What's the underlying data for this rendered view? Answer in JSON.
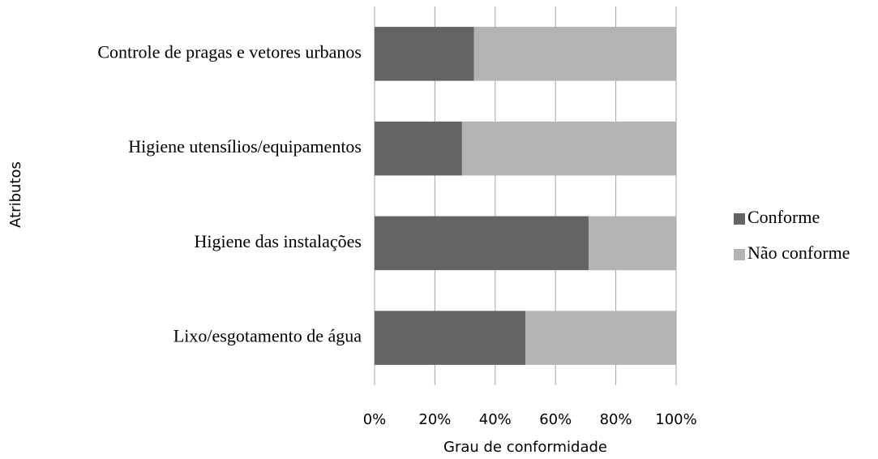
{
  "chart_data": {
    "type": "stacked_barh",
    "xlabel": "Grau de conformidade",
    "ylabel": "Atributos",
    "categories": [
      "Controle de pragas e vetores urbanos",
      "Higiene utensílios/equipamentos",
      "Higiene das instalações",
      "Lixo/esgotamento de água"
    ],
    "series": [
      {
        "name": "Conforme",
        "color": "#646464",
        "values": [
          33,
          29,
          71,
          50
        ]
      },
      {
        "name": "Não conforme",
        "color": "#b3b3b3",
        "values": [
          67,
          71,
          29,
          50
        ]
      }
    ],
    "xlim": [
      0,
      100
    ],
    "xticks": [
      {
        "value": 0,
        "label": "0%"
      },
      {
        "value": 20,
        "label": "20%"
      },
      {
        "value": 40,
        "label": "40%"
      },
      {
        "value": 60,
        "label": "60%"
      },
      {
        "value": 80,
        "label": "80%"
      },
      {
        "value": 100,
        "label": "100%"
      }
    ],
    "grid": true,
    "legend": "right"
  }
}
